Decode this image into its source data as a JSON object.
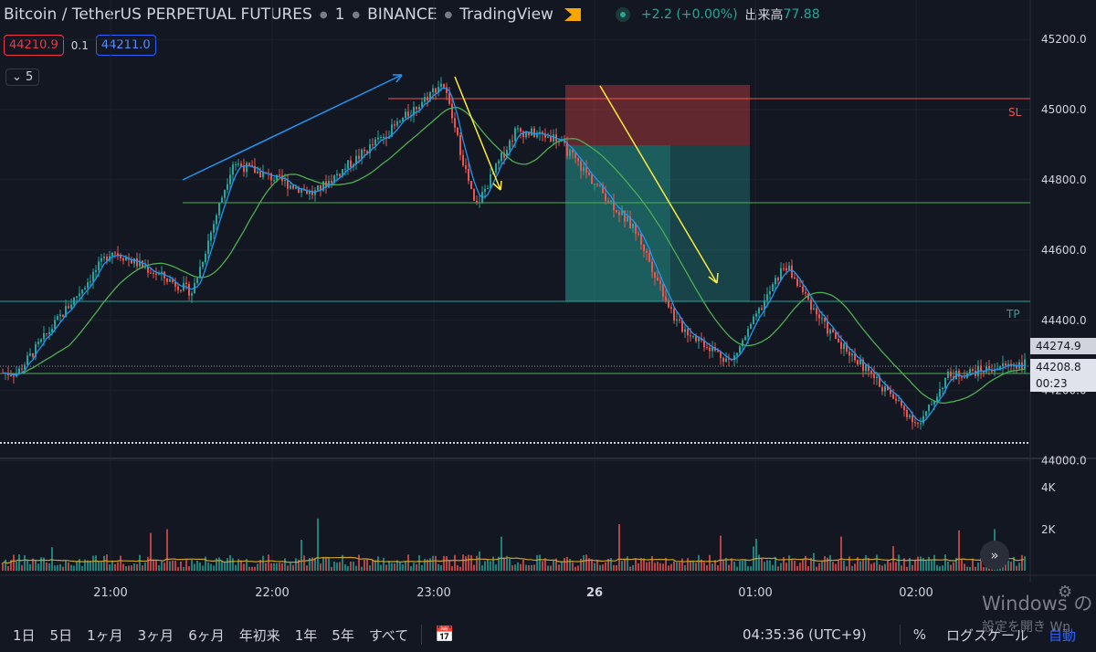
{
  "header": {
    "symbol_title": "Bitcoin / TetherUS PERPETUAL FUTURES",
    "interval": "1",
    "exchange": "BINANCE",
    "platform": "TradingView",
    "change": "+2.2 (+0.00%)",
    "volume_label": "出来高",
    "volume_value": "77.88"
  },
  "trade": {
    "sell_price": "44210.9",
    "spread": "0.1",
    "buy_price": "44211.0"
  },
  "indicators_collapse": {
    "count": "5"
  },
  "price_axis": {
    "ticks": [
      "45200.0",
      "45000.0",
      "44800.0",
      "44600.0",
      "44400.0",
      "44200.0",
      "44000.0"
    ]
  },
  "volume_axis": {
    "ticks": [
      "4K",
      "2K"
    ]
  },
  "time_axis": {
    "labels": [
      "21:00",
      "22:00",
      "23:00",
      "26",
      "01:00",
      "02:00"
    ]
  },
  "price_labels": {
    "last": "44274.9",
    "current": "44208.8",
    "countdown": "00:23"
  },
  "position_labels": {
    "stop_loss": "SL",
    "take_profit": "TP"
  },
  "bottom_toolbar": {
    "ranges": [
      "1日",
      "5日",
      "1ヶ月",
      "3ヶ月",
      "6ヶ月",
      "年初来",
      "1年",
      "5年",
      "すべて"
    ],
    "clock": "04:35:36 (UTC+9)",
    "percent": "%",
    "log": "ログスケール",
    "auto": "自動"
  },
  "watermark": {
    "line1": "Windows の",
    "line2": "設定を開き Wn"
  },
  "colors": {
    "background": "#131722",
    "up": "#26a69a",
    "down": "#ef5350",
    "ma": "#4caf50",
    "fast_ma": "#2196f3",
    "stop_zone": "#c2414140",
    "target_zone": "#26a69a66"
  },
  "chart_data": {
    "type": "candlestick",
    "symbol": "BTCUSDT.P",
    "interval_minutes": 1,
    "y_range": [
      43960,
      45260
    ],
    "x_labels": [
      "21:00",
      "22:00",
      "23:00",
      "26",
      "01:00",
      "02:00"
    ],
    "key_points": [
      {
        "time": "20:25",
        "price": 44250
      },
      {
        "time": "21:00",
        "price": 44600
      },
      {
        "time": "21:30",
        "price": 44480
      },
      {
        "time": "21:45",
        "price": 44850
      },
      {
        "time": "22:15",
        "price": 44760
      },
      {
        "time": "22:45",
        "price": 44950
      },
      {
        "time": "23:03",
        "price": 45080
      },
      {
        "time": "23:15",
        "price": 44720
      },
      {
        "time": "23:30",
        "price": 44940
      },
      {
        "time": "23:45",
        "price": 44920
      },
      {
        "time": "00:15",
        "price": 44650
      },
      {
        "time": "00:30",
        "price": 44390
      },
      {
        "time": "00:50",
        "price": 44280
      },
      {
        "time": "01:10",
        "price": 44560
      },
      {
        "time": "01:25",
        "price": 44380
      },
      {
        "time": "01:40",
        "price": 44260
      },
      {
        "time": "02:00",
        "price": 44100
      },
      {
        "time": "02:10",
        "price": 44240
      },
      {
        "time": "02:35",
        "price": 44275
      }
    ],
    "horizontal_levels": [
      45040,
      44720,
      44410,
      44200
    ],
    "position": {
      "stop_loss": 45040,
      "entry": 44890,
      "take_profit": 44410
    },
    "volume_ticks": [
      "4K",
      "2K"
    ]
  }
}
